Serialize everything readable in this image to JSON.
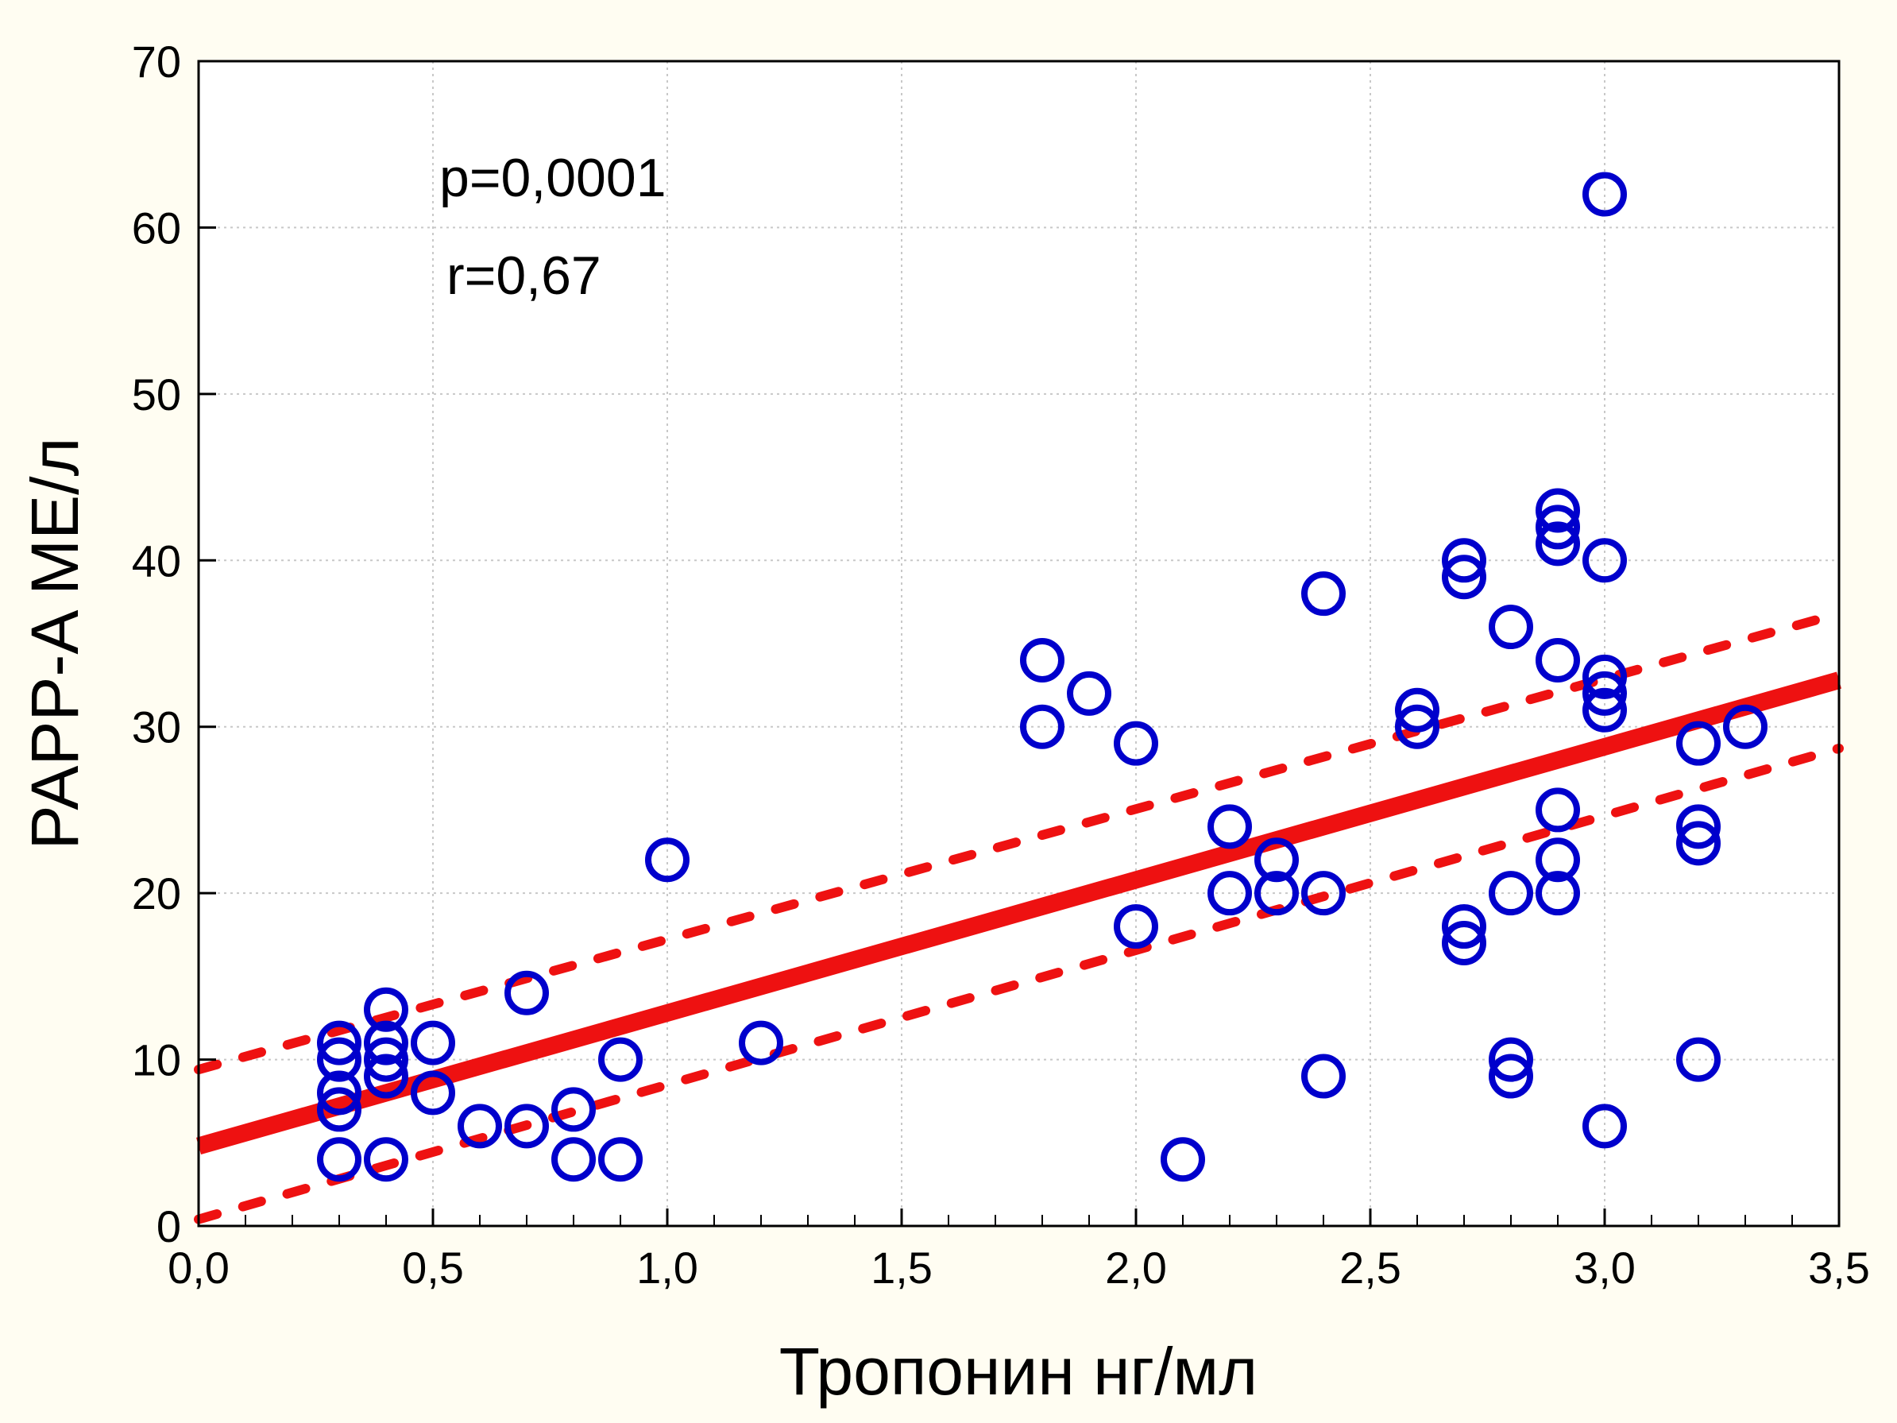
{
  "chart_data": {
    "type": "scatter",
    "xlabel": "Тропонин нг/мл",
    "ylabel": "PAPP-A МЕ/л",
    "xlim": [
      0,
      3.5
    ],
    "ylim": [
      0,
      70
    ],
    "x_ticks": [
      {
        "value": 0.0,
        "label": "0,0"
      },
      {
        "value": 0.5,
        "label": "0,5"
      },
      {
        "value": 1.0,
        "label": "1,0"
      },
      {
        "value": 1.5,
        "label": "1,5"
      },
      {
        "value": 2.0,
        "label": "2,0"
      },
      {
        "value": 2.5,
        "label": "2,5"
      },
      {
        "value": 3.0,
        "label": "3,0"
      },
      {
        "value": 3.5,
        "label": "3,5"
      }
    ],
    "y_ticks": [
      {
        "value": 0,
        "label": "0"
      },
      {
        "value": 10,
        "label": "10"
      },
      {
        "value": 20,
        "label": "20"
      },
      {
        "value": 30,
        "label": "30"
      },
      {
        "value": 40,
        "label": "40"
      },
      {
        "value": 50,
        "label": "50"
      },
      {
        "value": 60,
        "label": "60"
      },
      {
        "value": 70,
        "label": "70"
      }
    ],
    "grid": true,
    "annotations": [
      {
        "text": "p=0,0001"
      },
      {
        "text": "r=0,67"
      }
    ],
    "points": [
      {
        "x": 0.3,
        "y": 11
      },
      {
        "x": 0.3,
        "y": 10
      },
      {
        "x": 0.3,
        "y": 8
      },
      {
        "x": 0.3,
        "y": 7
      },
      {
        "x": 0.3,
        "y": 4
      },
      {
        "x": 0.4,
        "y": 13
      },
      {
        "x": 0.4,
        "y": 11
      },
      {
        "x": 0.4,
        "y": 10
      },
      {
        "x": 0.4,
        "y": 9
      },
      {
        "x": 0.4,
        "y": 4
      },
      {
        "x": 0.5,
        "y": 11
      },
      {
        "x": 0.5,
        "y": 8
      },
      {
        "x": 0.6,
        "y": 6
      },
      {
        "x": 0.7,
        "y": 14
      },
      {
        "x": 0.7,
        "y": 6
      },
      {
        "x": 0.8,
        "y": 7
      },
      {
        "x": 0.8,
        "y": 4
      },
      {
        "x": 0.9,
        "y": 10
      },
      {
        "x": 0.9,
        "y": 4
      },
      {
        "x": 1.0,
        "y": 22
      },
      {
        "x": 1.2,
        "y": 11
      },
      {
        "x": 1.8,
        "y": 34
      },
      {
        "x": 1.8,
        "y": 30
      },
      {
        "x": 1.9,
        "y": 32
      },
      {
        "x": 2.0,
        "y": 29
      },
      {
        "x": 2.0,
        "y": 18
      },
      {
        "x": 2.1,
        "y": 4
      },
      {
        "x": 2.2,
        "y": 24
      },
      {
        "x": 2.2,
        "y": 20
      },
      {
        "x": 2.3,
        "y": 22
      },
      {
        "x": 2.3,
        "y": 20
      },
      {
        "x": 2.4,
        "y": 38
      },
      {
        "x": 2.4,
        "y": 20
      },
      {
        "x": 2.4,
        "y": 9
      },
      {
        "x": 2.6,
        "y": 31
      },
      {
        "x": 2.6,
        "y": 30
      },
      {
        "x": 2.7,
        "y": 40
      },
      {
        "x": 2.7,
        "y": 39
      },
      {
        "x": 2.7,
        "y": 18
      },
      {
        "x": 2.7,
        "y": 17
      },
      {
        "x": 2.8,
        "y": 36
      },
      {
        "x": 2.8,
        "y": 20
      },
      {
        "x": 2.8,
        "y": 10
      },
      {
        "x": 2.8,
        "y": 9
      },
      {
        "x": 2.9,
        "y": 43
      },
      {
        "x": 2.9,
        "y": 42
      },
      {
        "x": 2.9,
        "y": 41
      },
      {
        "x": 2.9,
        "y": 34
      },
      {
        "x": 2.9,
        "y": 25
      },
      {
        "x": 2.9,
        "y": 22
      },
      {
        "x": 2.9,
        "y": 20
      },
      {
        "x": 3.0,
        "y": 62
      },
      {
        "x": 3.0,
        "y": 40
      },
      {
        "x": 3.0,
        "y": 33
      },
      {
        "x": 3.0,
        "y": 32
      },
      {
        "x": 3.0,
        "y": 31
      },
      {
        "x": 3.0,
        "y": 6
      },
      {
        "x": 3.2,
        "y": 29
      },
      {
        "x": 3.2,
        "y": 24
      },
      {
        "x": 3.2,
        "y": 23
      },
      {
        "x": 3.2,
        "y": 10
      },
      {
        "x": 3.3,
        "y": 30
      }
    ],
    "regression": {
      "x": [
        0,
        3.5
      ],
      "y": [
        4.8,
        32.8
      ]
    },
    "confidence_upper": {
      "x": [
        0,
        3.5
      ],
      "y": [
        9.4,
        36.8
      ]
    },
    "confidence_lower": {
      "x": [
        0,
        3.5
      ],
      "y": [
        0.4,
        28.7
      ]
    },
    "colors": {
      "background": "#fffdf2",
      "plot_background": "#ffffff",
      "points": "#0000cc",
      "regression": "#ee1111",
      "grid": "#c8c8c8"
    }
  }
}
